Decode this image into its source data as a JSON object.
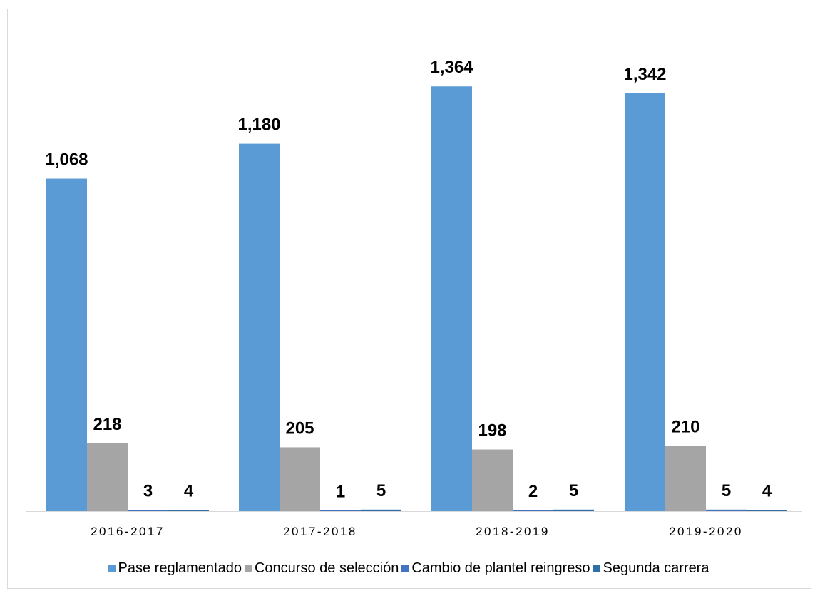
{
  "chart_data": {
    "type": "bar",
    "categories": [
      "2016-2017",
      "2017-2018",
      "2018-2019",
      "2019-2020"
    ],
    "series": [
      {
        "name": "Pase reglamentado",
        "values": [
          1068,
          1180,
          1364,
          1342
        ],
        "labels": [
          "1,068",
          "1,180",
          "1,364",
          "1,342"
        ],
        "color": "#5b9bd5"
      },
      {
        "name": "Concurso de selección",
        "values": [
          218,
          205,
          198,
          210
        ],
        "labels": [
          "218",
          "205",
          "198",
          "210"
        ],
        "color": "#a5a5a5"
      },
      {
        "name": "Cambio de plantel reingreso",
        "values": [
          3,
          1,
          2,
          5
        ],
        "labels": [
          "3",
          "1",
          "2",
          "5"
        ],
        "color": "#4472c4"
      },
      {
        "name": "Segunda carrera",
        "values": [
          4,
          5,
          5,
          4
        ],
        "labels": [
          "4",
          "5",
          "5",
          "4"
        ],
        "color": "#2e6fa8"
      }
    ],
    "ylim": [
      0,
      1550
    ],
    "grid": false,
    "legend_position": "bottom"
  }
}
